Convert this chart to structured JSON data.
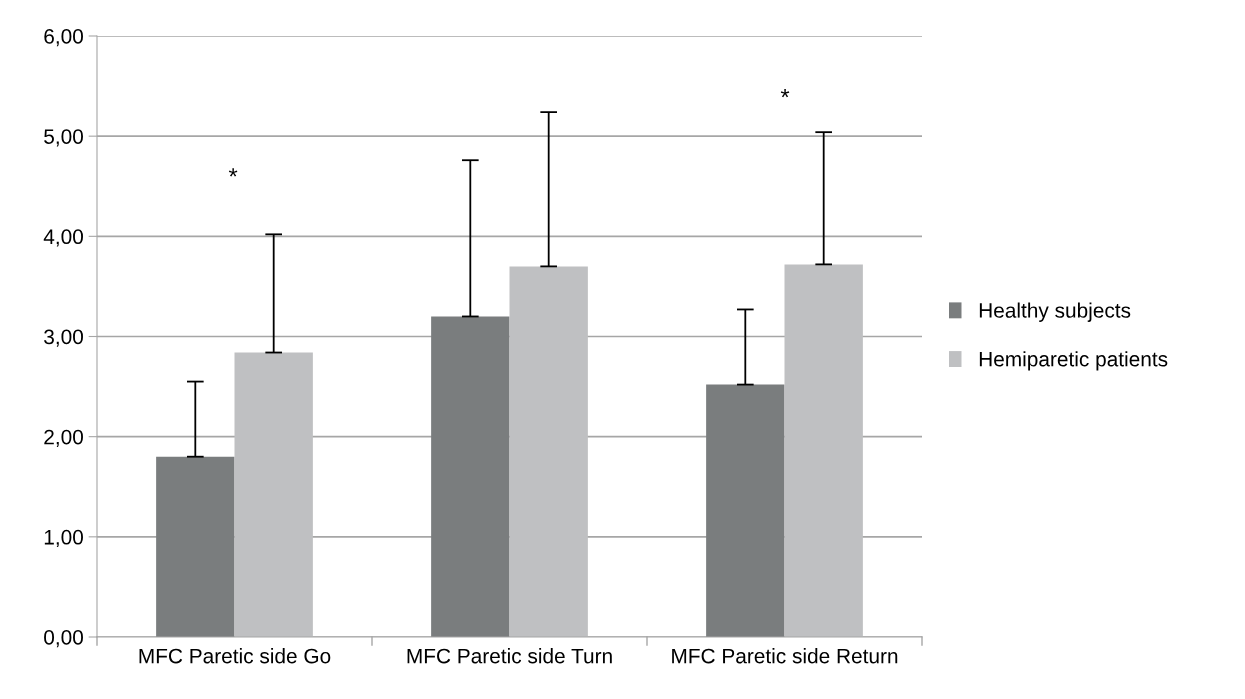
{
  "chart_data": {
    "type": "bar",
    "categories": [
      "MFC Paretic side Go",
      "MFC Paretic side Turn",
      "MFC Paretic side Return"
    ],
    "series": [
      {
        "name": "Healthy subjects",
        "color": "#7a7d7e",
        "values": [
          1.8,
          3.2,
          2.52
        ],
        "errors": [
          [
            1.8,
            2.55
          ],
          [
            3.2,
            4.76
          ],
          [
            2.52,
            3.27
          ]
        ]
      },
      {
        "name": "Hemiparetic patients",
        "color": "#bfc0c2",
        "values": [
          2.84,
          3.7,
          3.72
        ],
        "errors": [
          [
            2.84,
            4.02
          ],
          [
            3.7,
            5.24
          ],
          [
            3.72,
            5.04
          ]
        ]
      }
    ],
    "ylim": [
      0,
      6
    ],
    "yticks": [
      {
        "value": 0,
        "label": "0,00"
      },
      {
        "value": 1,
        "label": "1,00"
      },
      {
        "value": 2,
        "label": "2,00"
      },
      {
        "value": 3,
        "label": "3,00"
      },
      {
        "value": 4,
        "label": "4,00"
      },
      {
        "value": 5,
        "label": "5,00"
      },
      {
        "value": 6,
        "label": "6,00"
      }
    ],
    "grid": "y",
    "legend": "right",
    "annotations": [
      "*",
      "*"
    ]
  }
}
